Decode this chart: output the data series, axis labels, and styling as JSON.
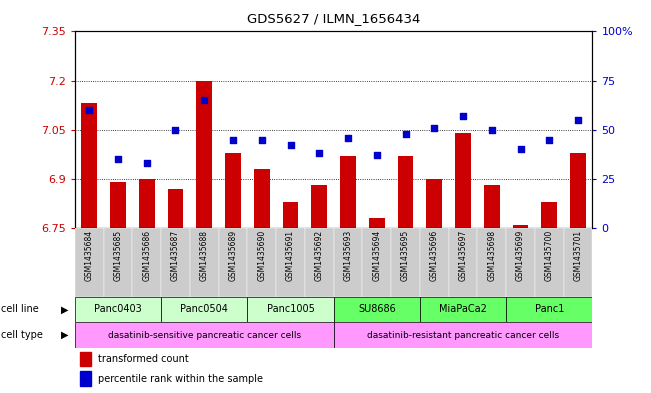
{
  "title": "GDS5627 / ILMN_1656434",
  "samples": [
    "GSM1435684",
    "GSM1435685",
    "GSM1435686",
    "GSM1435687",
    "GSM1435688",
    "GSM1435689",
    "GSM1435690",
    "GSM1435691",
    "GSM1435692",
    "GSM1435693",
    "GSM1435694",
    "GSM1435695",
    "GSM1435696",
    "GSM1435697",
    "GSM1435698",
    "GSM1435699",
    "GSM1435700",
    "GSM1435701"
  ],
  "bar_values": [
    7.13,
    6.89,
    6.9,
    6.87,
    7.2,
    6.98,
    6.93,
    6.83,
    6.88,
    6.97,
    6.78,
    6.97,
    6.9,
    7.04,
    6.88,
    6.76,
    6.83,
    6.98
  ],
  "percentile_values": [
    60,
    35,
    33,
    50,
    65,
    45,
    45,
    42,
    38,
    46,
    37,
    48,
    51,
    57,
    50,
    40,
    45,
    55
  ],
  "ylim": [
    6.75,
    7.35
  ],
  "yticks": [
    6.75,
    6.9,
    7.05,
    7.2,
    7.35
  ],
  "ytick_labels": [
    "6.75",
    "6.9",
    "7.05",
    "7.2",
    "7.35"
  ],
  "y2lim": [
    0,
    100
  ],
  "y2ticks": [
    0,
    25,
    50,
    75,
    100
  ],
  "y2tick_labels": [
    "0",
    "25",
    "50",
    "75",
    "100%"
  ],
  "bar_color": "#cc0000",
  "dot_color": "#0000cc",
  "cell_line_groups": [
    {
      "label": "Panc0403",
      "start": 0,
      "end": 2,
      "color": "#ccffcc"
    },
    {
      "label": "Panc0504",
      "start": 3,
      "end": 5,
      "color": "#ccffcc"
    },
    {
      "label": "Panc1005",
      "start": 6,
      "end": 8,
      "color": "#ccffcc"
    },
    {
      "label": "SU8686",
      "start": 9,
      "end": 11,
      "color": "#66ff66"
    },
    {
      "label": "MiaPaCa2",
      "start": 12,
      "end": 14,
      "color": "#66ff66"
    },
    {
      "label": "Panc1",
      "start": 15,
      "end": 17,
      "color": "#66ff66"
    }
  ],
  "cell_type_groups": [
    {
      "label": "dasatinib-sensitive pancreatic cancer cells",
      "start": 0,
      "end": 8,
      "color": "#ff99ff"
    },
    {
      "label": "dasatinib-resistant pancreatic cancer cells",
      "start": 9,
      "end": 17,
      "color": "#ff99ff"
    }
  ],
  "tick_color_left": "#cc0000",
  "tick_color_right": "#0000cc",
  "xtick_bg": "#cccccc",
  "label_left": "cell line",
  "label_left2": "cell type",
  "legend_red": "transformed count",
  "legend_blue": "percentile rank within the sample"
}
